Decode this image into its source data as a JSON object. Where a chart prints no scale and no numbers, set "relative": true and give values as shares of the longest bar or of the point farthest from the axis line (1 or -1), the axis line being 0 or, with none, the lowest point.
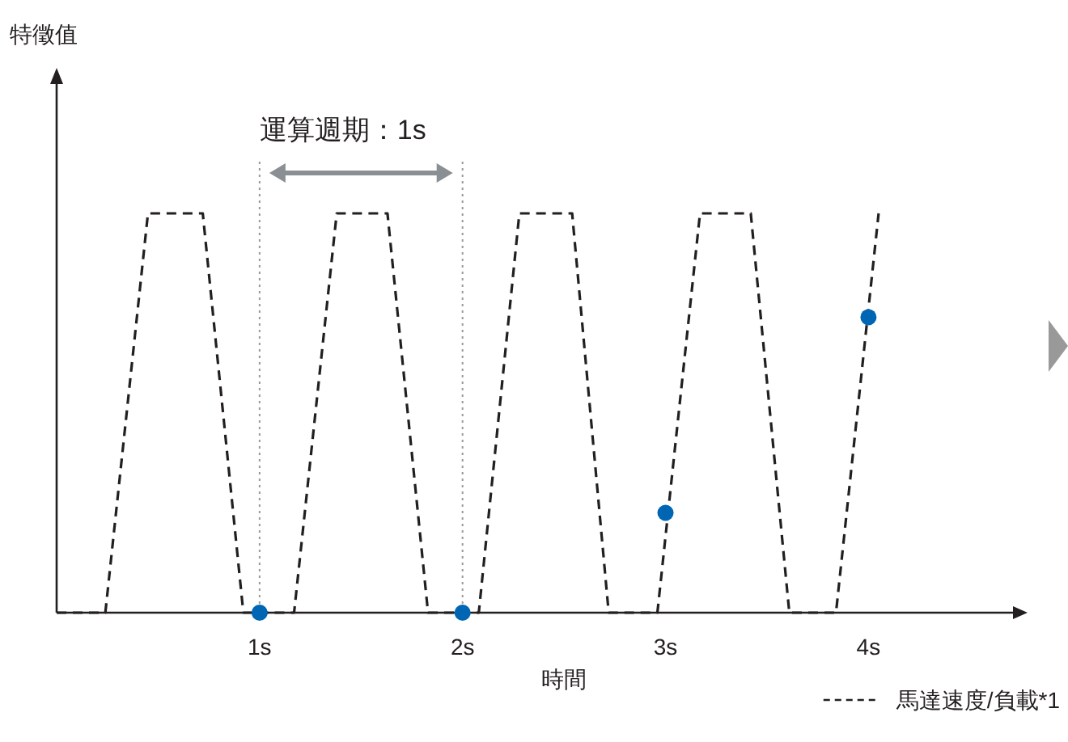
{
  "chart_data": {
    "type": "line",
    "relative": true,
    "xlabel": "時間",
    "xlim": [
      0,
      4.72
    ],
    "xticks": [
      {
        "value": 1,
        "label": "1s"
      },
      {
        "value": 2,
        "label": "2s"
      },
      {
        "value": 3,
        "label": "3s"
      },
      {
        "value": 4,
        "label": "4s"
      }
    ],
    "tick_labels": "x",
    "legend": "bottom right",
    "series": [
      {
        "name": "馬達速度/負載*1",
        "color": "#231f20",
        "line_style": "dashed",
        "marker": "none",
        "x": [
          0,
          0.24,
          0.45,
          0.72,
          0.92,
          1.17,
          1.38,
          1.63,
          1.83,
          2.08,
          2.28,
          2.54,
          2.72,
          2.96,
          3.17,
          3.42,
          3.61,
          3.84,
          4.05
        ],
        "values": [
          0,
          0,
          1,
          1,
          0,
          0,
          1,
          1,
          0,
          0,
          1,
          1,
          0,
          0,
          1,
          1,
          0,
          0,
          1
        ]
      },
      {
        "type": "scatter",
        "color": "#0066b3",
        "marker": "circle",
        "x": [
          1,
          2,
          3,
          4
        ],
        "values": [
          0,
          0,
          0.25,
          0.74
        ]
      }
    ],
    "ref_lines": [
      {
        "axis": "x",
        "value": 1,
        "color": "#999999",
        "line_style": "dotted"
      },
      {
        "axis": "x",
        "value": 2,
        "color": "#999999",
        "line_style": "dotted"
      }
    ],
    "annotations": [
      "運算週期：1s",
      "特徵值"
    ]
  }
}
